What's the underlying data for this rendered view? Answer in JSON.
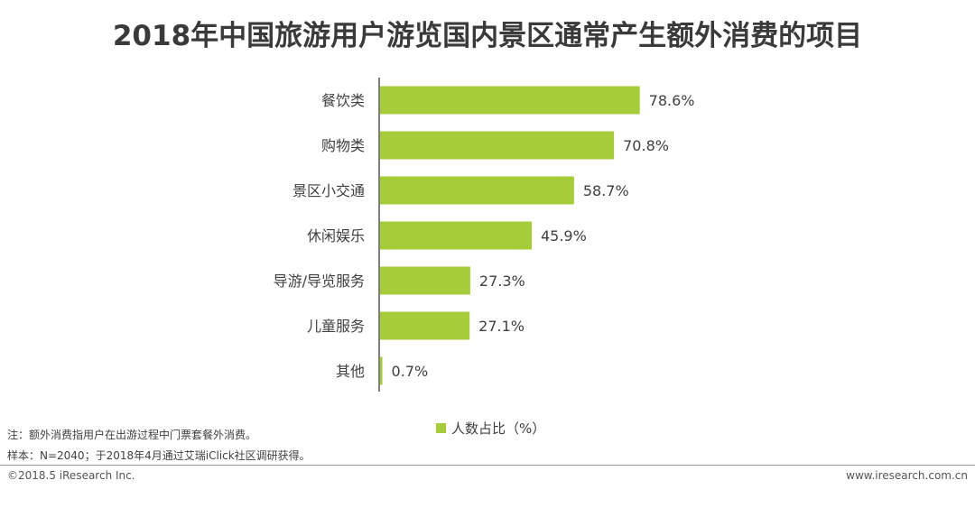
{
  "chart_data": {
    "type": "bar",
    "orientation": "horizontal",
    "title": "2018年中国旅游用户游览国内景区通常产生额外消费的项目",
    "categories": [
      "餐饮类",
      "购物类",
      "景区小交通",
      "休闲娱乐",
      "导游/导览服务",
      "儿童服务",
      "其他"
    ],
    "series": [
      {
        "name": "人数占比（%）",
        "values": [
          78.6,
          70.8,
          58.7,
          45.9,
          27.3,
          27.1,
          0.7
        ]
      }
    ],
    "value_labels": [
      "78.6%",
      "70.8%",
      "58.7%",
      "45.9%",
      "27.3%",
      "27.1%",
      "0.7%"
    ],
    "xlim": [
      0,
      100
    ],
    "grid": false,
    "legend_position": "bottom",
    "bar_color": "#a6cd39"
  },
  "notes": {
    "note": "注：额外消费指用户在出游过程中门票套餐外消费。",
    "sample": "样本：N=2040；于2018年4月通过艾瑞iClick社区调研获得。"
  },
  "footer": {
    "copyright": "©2018.5 iResearch Inc.",
    "website": "www.iresearch.com.cn"
  }
}
